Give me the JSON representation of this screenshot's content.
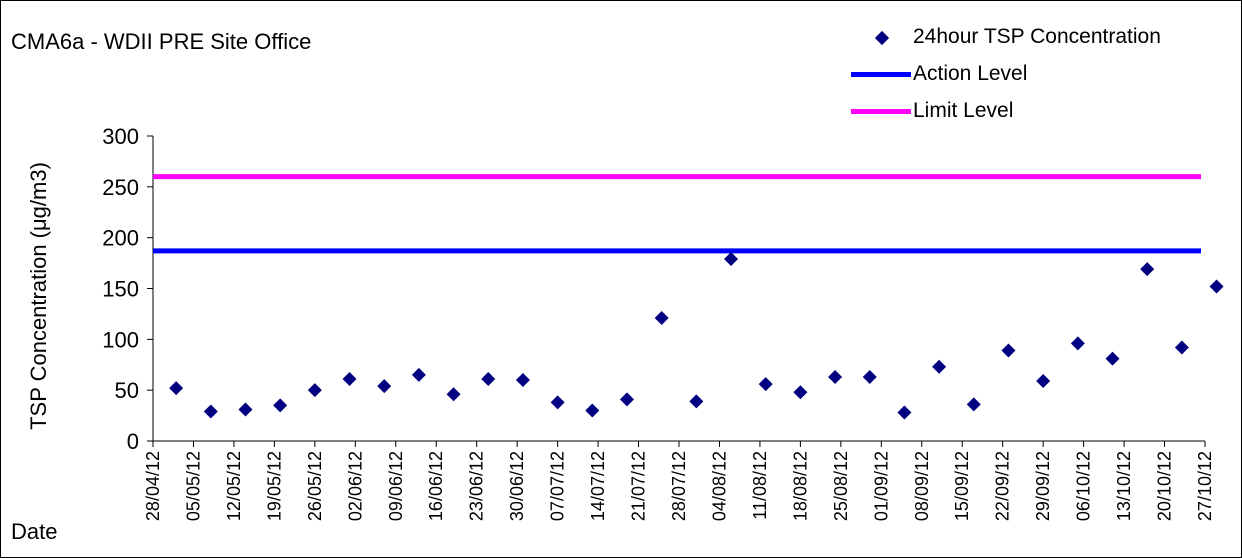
{
  "chart_data": {
    "type": "scatter",
    "title": "CMA6a - WDII PRE Site Office",
    "xlabel": "Date",
    "ylabel": "TSP Concentration (μg/m3)",
    "ylim": [
      0,
      300
    ],
    "yticks": [
      0,
      50,
      100,
      150,
      200,
      250,
      300
    ],
    "xticks": [
      "28/04/12",
      "05/05/12",
      "12/05/12",
      "19/05/12",
      "26/05/12",
      "02/06/12",
      "09/06/12",
      "16/06/12",
      "23/06/12",
      "30/06/12",
      "07/07/12",
      "14/07/12",
      "21/07/12",
      "28/07/12",
      "04/08/12",
      "11/08/12",
      "18/08/12",
      "25/08/12",
      "01/09/12",
      "08/09/12",
      "15/09/12",
      "22/09/12",
      "29/09/12",
      "06/10/12",
      "13/10/12",
      "20/10/12",
      "27/10/12"
    ],
    "xrange": [
      "28/04/12",
      "27/10/12"
    ],
    "grid": false,
    "legend_position": "top-right",
    "series": [
      {
        "name": "24hour TSP Concentration",
        "marker": "diamond",
        "color": "#000080",
        "points": [
          {
            "x": "02/05/12",
            "y": 52
          },
          {
            "x": "08/05/12",
            "y": 29
          },
          {
            "x": "14/05/12",
            "y": 31
          },
          {
            "x": "20/05/12",
            "y": 35
          },
          {
            "x": "26/05/12",
            "y": 50
          },
          {
            "x": "01/06/12",
            "y": 61
          },
          {
            "x": "07/06/12",
            "y": 54
          },
          {
            "x": "13/06/12",
            "y": 65
          },
          {
            "x": "19/06/12",
            "y": 46
          },
          {
            "x": "25/06/12",
            "y": 61
          },
          {
            "x": "01/07/12",
            "y": 60
          },
          {
            "x": "07/07/12",
            "y": 38
          },
          {
            "x": "13/07/12",
            "y": 30
          },
          {
            "x": "19/07/12",
            "y": 41
          },
          {
            "x": "25/07/12",
            "y": 121
          },
          {
            "x": "31/07/12",
            "y": 39
          },
          {
            "x": "06/08/12",
            "y": 179
          },
          {
            "x": "12/08/12",
            "y": 56
          },
          {
            "x": "18/08/12",
            "y": 48
          },
          {
            "x": "24/08/12",
            "y": 63
          },
          {
            "x": "30/08/12",
            "y": 63
          },
          {
            "x": "05/09/12",
            "y": 28
          },
          {
            "x": "11/09/12",
            "y": 73
          },
          {
            "x": "17/09/12",
            "y": 36
          },
          {
            "x": "23/09/12",
            "y": 89
          },
          {
            "x": "29/09/12",
            "y": 59
          },
          {
            "x": "05/10/12",
            "y": 96
          },
          {
            "x": "11/10/12",
            "y": 81
          },
          {
            "x": "17/10/12",
            "y": 169
          },
          {
            "x": "23/10/12",
            "y": 92
          },
          {
            "x": "29/10/12",
            "y": 152
          }
        ]
      },
      {
        "name": "Action Level",
        "type": "hline",
        "y": 187,
        "color": "#0000ff"
      },
      {
        "name": "Limit Level",
        "type": "hline",
        "y": 260,
        "color": "#ff00ff"
      }
    ]
  }
}
